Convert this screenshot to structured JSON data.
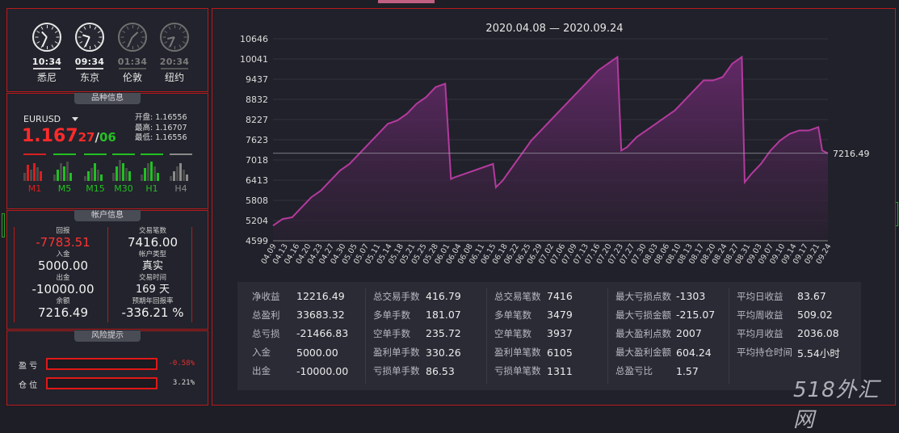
{
  "clocks": [
    {
      "time": "10:34",
      "city": "悉尼",
      "active": true,
      "hour": 10,
      "minute": 34
    },
    {
      "time": "09:34",
      "city": "东京",
      "active": true,
      "hour": 9,
      "minute": 34
    },
    {
      "time": "01:34",
      "city": "伦敦",
      "active": false,
      "hour": 1,
      "minute": 34
    },
    {
      "time": "20:34",
      "city": "纽约",
      "active": false,
      "hour": 20,
      "minute": 34
    }
  ],
  "symbol_section": {
    "title": "品种信息",
    "symbol": "EURUSD",
    "price_main": "1.167",
    "price_bid_digits": "27",
    "price_sep": "/",
    "price_ask_digits": "06",
    "open": "开盘: 1.16556",
    "high": "最高: 1.16707",
    "low": "最低: 1.16556",
    "timeframes": [
      {
        "label": "M1",
        "color": "#d82020"
      },
      {
        "label": "M5",
        "color": "#22c022"
      },
      {
        "label": "M15",
        "color": "#22c022"
      },
      {
        "label": "M30",
        "color": "#22c022"
      },
      {
        "label": "H1",
        "color": "#22c022"
      },
      {
        "label": "H4",
        "color": "#8a8a8a"
      }
    ]
  },
  "account_section": {
    "title": "帐户信息",
    "drawdown_label": "回报",
    "drawdown_value": "-7783.51",
    "deposit_label": "入金",
    "deposit_value": "5000.00",
    "withdraw_label": "出金",
    "withdraw_value": "-10000.00",
    "balance_label": "余额",
    "balance_value": "7216.49",
    "trades_label": "交易笔数",
    "trades_value": "7416.00",
    "type_label": "帐户类型",
    "type_value": "真实",
    "time_label": "交易时间",
    "time_value": "169 天",
    "annual_label": "预期年回报率",
    "annual_value": "-336.21 %"
  },
  "risk_section": {
    "title": "风险提示",
    "profit_label": "盈 亏",
    "profit_value": "-0.58%",
    "position_label": "仓 位",
    "position_value": "3.21%"
  },
  "chart_data": {
    "type": "area",
    "title": "2020.04.08 — 2020.09.24",
    "yticks": [
      4599,
      5204,
      5808,
      6413,
      7018,
      7623,
      8227,
      8832,
      9437,
      10041,
      10646
    ],
    "ylim": [
      4599,
      10646
    ],
    "xticks": [
      "04.09",
      "04.13",
      "04.16",
      "04.20",
      "04.23",
      "04.27",
      "04.30",
      "05.05",
      "05.07",
      "05.11",
      "05.14",
      "05.18",
      "05.21",
      "05.25",
      "05.28",
      "06.01",
      "06.04",
      "06.08",
      "06.11",
      "06.15",
      "06.18",
      "06.22",
      "06.25",
      "06.29",
      "07.02",
      "07.06",
      "07.09",
      "07.13",
      "07.16",
      "07.20",
      "07.23",
      "07.27",
      "07.30",
      "08.03",
      "08.06",
      "08.10",
      "08.13",
      "08.17",
      "08.20",
      "08.24",
      "08.27",
      "08.31",
      "09.03",
      "09.07",
      "09.10",
      "09.14",
      "09.17",
      "09.21",
      "09.24"
    ],
    "last_value": "7216.49",
    "reference_line": 7216.49,
    "series": [
      {
        "values": [
          [
            0,
            5050
          ],
          [
            1,
            5250
          ],
          [
            2,
            5300
          ],
          [
            3,
            5600
          ],
          [
            4,
            5900
          ],
          [
            5,
            6100
          ],
          [
            6,
            6400
          ],
          [
            7,
            6700
          ],
          [
            8,
            6900
          ],
          [
            9,
            7200
          ],
          [
            10,
            7500
          ],
          [
            11,
            7800
          ],
          [
            12,
            8100
          ],
          [
            13,
            8200
          ],
          [
            14,
            8400
          ],
          [
            15,
            8700
          ],
          [
            16,
            8900
          ],
          [
            17,
            9200
          ],
          [
            18,
            9300
          ],
          [
            18.6,
            6450
          ],
          [
            19,
            6500
          ],
          [
            20,
            6600
          ],
          [
            21,
            6700
          ],
          [
            22,
            6800
          ],
          [
            23,
            6900
          ],
          [
            23.3,
            6200
          ],
          [
            24,
            6400
          ],
          [
            25,
            6800
          ],
          [
            26,
            7200
          ],
          [
            27,
            7600
          ],
          [
            28,
            7900
          ],
          [
            29,
            8200
          ],
          [
            30,
            8500
          ],
          [
            31,
            8800
          ],
          [
            32,
            9100
          ],
          [
            33,
            9400
          ],
          [
            34,
            9700
          ],
          [
            35,
            9900
          ],
          [
            36,
            10100
          ],
          [
            36.4,
            7300
          ],
          [
            37,
            7400
          ],
          [
            38,
            7700
          ],
          [
            39,
            7900
          ],
          [
            40,
            8100
          ],
          [
            41,
            8300
          ],
          [
            42,
            8500
          ],
          [
            43,
            8800
          ],
          [
            44,
            9100
          ],
          [
            45,
            9400
          ],
          [
            46,
            9400
          ],
          [
            47,
            9500
          ],
          [
            48,
            9900
          ],
          [
            49,
            10100
          ],
          [
            49.3,
            6350
          ],
          [
            50,
            6600
          ],
          [
            51,
            6900
          ],
          [
            52,
            7300
          ],
          [
            53,
            7600
          ],
          [
            54,
            7800
          ],
          [
            55,
            7900
          ],
          [
            56,
            7900
          ],
          [
            57,
            8000
          ],
          [
            57.4,
            7300
          ],
          [
            58,
            7216
          ]
        ]
      }
    ]
  },
  "stats": {
    "col1": [
      {
        "k": "净收益",
        "v": "12216.49"
      },
      {
        "k": "总盈利",
        "v": "33683.32"
      },
      {
        "k": "总亏损",
        "v": "-21466.83"
      },
      {
        "k": "入金",
        "v": "5000.00"
      },
      {
        "k": "出金",
        "v": "-10000.00"
      }
    ],
    "col2": [
      {
        "k": "总交易手数",
        "v": "416.79"
      },
      {
        "k": "多单手数",
        "v": "181.07"
      },
      {
        "k": "空单手数",
        "v": "235.72"
      },
      {
        "k": "盈利单手数",
        "v": "330.26"
      },
      {
        "k": "亏损单手数",
        "v": "86.53"
      }
    ],
    "col3": [
      {
        "k": "总交易笔数",
        "v": "7416"
      },
      {
        "k": "多单笔数",
        "v": "3479"
      },
      {
        "k": "空单笔数",
        "v": "3937"
      },
      {
        "k": "盈利单笔数",
        "v": "6105"
      },
      {
        "k": "亏损单笔数",
        "v": "1311"
      }
    ],
    "col4": [
      {
        "k": "最大亏损点数",
        "v": "-1303"
      },
      {
        "k": "最大亏损金额",
        "v": "-215.07"
      },
      {
        "k": "最大盈利点数",
        "v": "2007"
      },
      {
        "k": "最大盈利金额",
        "v": "604.24"
      },
      {
        "k": "总盈亏比",
        "v": "1.57"
      }
    ],
    "col5": [
      {
        "k": "平均日收益",
        "v": "83.67"
      },
      {
        "k": "平均周收益",
        "v": "509.02"
      },
      {
        "k": "平均月收益",
        "v": "2036.08"
      },
      {
        "k": "平均持仓时间",
        "v": "5.54小时"
      }
    ]
  },
  "watermark": "518外汇网",
  "colors": {
    "accent_red": "#b81a1a",
    "line": "#b43a9e",
    "fill": "#5a2a60"
  }
}
